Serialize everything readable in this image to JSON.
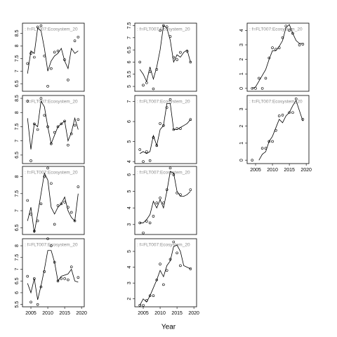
{
  "xlabel": "Year",
  "chart_data": [
    {
      "type": "scatter",
      "title": ": f=FLT007:Ecosystem_20",
      "x": [
        2004,
        2005,
        2006,
        2007,
        2008,
        2009,
        2010,
        2011,
        2012,
        2013,
        2014,
        2015,
        2016,
        2017,
        2018,
        2019
      ],
      "xlim": [
        2002.5,
        2020.8
      ],
      "ylim": [
        6.2,
        8.9
      ],
      "yticks": [
        6.5,
        7,
        7.5,
        8,
        8.5
      ],
      "series": [
        {
          "style": "points",
          "color": "#000000",
          "values": [
            7.3,
            7.7,
            7.55,
            8.75,
            8.8,
            7.6,
            6.4,
            7.1,
            7.75,
            7.8,
            null,
            7.45,
            6.65,
            null,
            8.2,
            8.35
          ]
        },
        {
          "style": "line",
          "color": "#000000",
          "values": [
            6.9,
            7.8,
            7.7,
            8.7,
            8.6,
            7.9,
            7.0,
            7.4,
            7.6,
            7.7,
            7.9,
            7.4,
            7.1,
            7.9,
            7.7,
            7.8
          ]
        }
      ]
    },
    {
      "type": "scatter",
      "title": ": f=FLT007:Ecosystem_20",
      "x": [
        2004,
        2005,
        2006,
        2007,
        2008,
        2009,
        2010,
        2011,
        2012,
        2013,
        2014,
        2015,
        2016,
        2017,
        2018,
        2019
      ],
      "xlim": [
        2002.5,
        2020.8
      ],
      "ylim": [
        6.2,
        8.6
      ],
      "yticks": [
        6.5,
        7,
        7.5,
        8,
        8.5
      ],
      "series": [
        {
          "style": "points",
          "color": "#000000",
          "values": [
            8.4,
            6.3,
            7.6,
            7.4,
            8.5,
            7.9,
            7.5,
            6.9,
            7.3,
            7.5,
            7.6,
            7.7,
            6.85,
            7.25,
            7.55,
            7.75
          ]
        },
        {
          "style": "line",
          "color": "#000000",
          "values": [
            7.8,
            6.7,
            7.6,
            7.5,
            8.4,
            8.2,
            7.5,
            6.9,
            7.2,
            7.5,
            7.6,
            7.7,
            7.0,
            7.3,
            7.8,
            7.4
          ]
        }
      ]
    },
    {
      "type": "scatter",
      "title": ": f=FLT007:Ecosystem_20",
      "x": [
        2004,
        2005,
        2006,
        2007,
        2008,
        2009,
        2010,
        2011,
        2012,
        2013,
        2014,
        2015,
        2016,
        2017,
        2018,
        2019
      ],
      "xlim": [
        2002.5,
        2020.8
      ],
      "ylim": [
        6.3,
        8.3
      ],
      "yticks": [
        6.5,
        7,
        7.5,
        8
      ],
      "series": [
        {
          "style": "points",
          "color": "#000000",
          "values": [
            7.3,
            6.9,
            6.4,
            6.7,
            7.2,
            8.0,
            8.25,
            7.8,
            6.6,
            7.15,
            7.2,
            7.25,
            7.1,
            6.95,
            6.7,
            7.7
          ]
        },
        {
          "style": "line",
          "color": "#000000",
          "values": [
            6.7,
            7.1,
            6.35,
            6.9,
            7.5,
            8.1,
            7.9,
            7.1,
            6.9,
            7.1,
            7.2,
            7.4,
            7.0,
            6.8,
            6.7,
            7.5
          ]
        }
      ]
    },
    {
      "type": "scatter",
      "title": ": f=FLT007:Ecosystem_20",
      "x": [
        2004,
        2005,
        2006,
        2007,
        2008,
        2009,
        2010,
        2011,
        2012,
        2013,
        2014,
        2015,
        2016,
        2017,
        2018,
        2019
      ],
      "xlim": [
        2002.5,
        2020.8
      ],
      "xticks": [
        2005,
        2010,
        2015,
        2020
      ],
      "ylim": [
        5.4,
        8.3
      ],
      "yticks": [
        5.5,
        6,
        6.5,
        7,
        7.5,
        8
      ],
      "series": [
        {
          "style": "points",
          "color": "#000000",
          "values": [
            6.7,
            5.6,
            6.6,
            5.5,
            6.25,
            6.9,
            8.3,
            8.0,
            7.3,
            6.5,
            6.6,
            6.6,
            6.55,
            7.1,
            null,
            6.65
          ]
        },
        {
          "style": "line",
          "color": "#000000",
          "values": [
            6.4,
            6.0,
            6.6,
            5.7,
            6.3,
            7.0,
            7.8,
            7.8,
            7.3,
            6.5,
            6.7,
            6.75,
            6.8,
            7.0,
            6.5,
            6.45
          ]
        }
      ]
    },
    {
      "type": "scatter",
      "title": ": f=FLT007:Ecosystem_20",
      "x": [
        2004,
        2005,
        2006,
        2007,
        2008,
        2009,
        2010,
        2011,
        2012,
        2013,
        2014,
        2015,
        2016,
        2017,
        2018,
        2019
      ],
      "xlim": [
        2002.5,
        2020.8
      ],
      "ylim": [
        4.8,
        7.6
      ],
      "yticks": [
        5,
        5.5,
        6,
        6.5,
        7,
        7.5
      ],
      "series": [
        {
          "style": "points",
          "color": "#000000",
          "values": [
            6.0,
            5.05,
            5.15,
            5.6,
            4.9,
            5.7,
            7.3,
            7.5,
            7.45,
            7.05,
            6.2,
            6.1,
            6.4,
            null,
            6.45,
            6.0
          ]
        },
        {
          "style": "line",
          "color": "#000000",
          "values": [
            5.7,
            5.5,
            5.2,
            5.8,
            5.3,
            5.8,
            6.5,
            7.5,
            7.4,
            6.9,
            6.0,
            6.3,
            6.2,
            6.4,
            6.5,
            6.0
          ]
        }
      ]
    },
    {
      "type": "scatter",
      "title": ": f=FLT007:Ecosystem_20",
      "x": [
        2004,
        2005,
        2006,
        2007,
        2008,
        2009,
        2010,
        2011,
        2012,
        2013,
        2014,
        2015,
        2016,
        2017,
        2018,
        2019
      ],
      "xlim": [
        2002.5,
        2020.8
      ],
      "ylim": [
        3.9,
        7.3
      ],
      "yticks": [
        4,
        5,
        6,
        7
      ],
      "series": [
        {
          "style": "points",
          "color": "#000000",
          "values": [
            4.6,
            4.0,
            4.5,
            4.05,
            5.2,
            4.8,
            5.9,
            5.8,
            6.7,
            7.1,
            5.6,
            5.65,
            5.65,
            null,
            null,
            6.1
          ]
        },
        {
          "style": "line",
          "color": "#000000",
          "values": [
            4.4,
            4.5,
            4.4,
            4.5,
            5.3,
            4.8,
            5.6,
            5.8,
            6.9,
            6.9,
            5.6,
            5.6,
            5.7,
            5.8,
            5.9,
            6.1
          ]
        }
      ]
    },
    {
      "type": "scatter",
      "title": ": f=FLT007:Ecosystem_20",
      "x": [
        2004,
        2005,
        2006,
        2007,
        2008,
        2009,
        2010,
        2011,
        2012,
        2013,
        2014,
        2015,
        2016,
        2017,
        2018,
        2019
      ],
      "xlim": [
        2002.5,
        2020.8
      ],
      "ylim": [
        2.4,
        6.5
      ],
      "yticks": [
        3,
        4,
        5,
        6
      ],
      "series": [
        {
          "style": "points",
          "color": "#000000",
          "values": [
            3.1,
            2.5,
            3.2,
            3.1,
            3.5,
            4.3,
            4.6,
            4.3,
            5.1,
            6.4,
            6.0,
            4.9,
            4.8,
            null,
            null,
            5.1
          ]
        },
        {
          "style": "line",
          "color": "#000000",
          "values": [
            3.1,
            3.1,
            3.3,
            3.6,
            4.4,
            4.0,
            4.5,
            4.0,
            5.0,
            6.2,
            6.1,
            5.0,
            4.7,
            4.7,
            4.8,
            5.0
          ]
        }
      ]
    },
    {
      "type": "scatter",
      "title": ": f=FLT007:Ecosystem_20",
      "x": [
        2004,
        2005,
        2006,
        2007,
        2008,
        2009,
        2010,
        2011,
        2012,
        2013,
        2014,
        2015,
        2016,
        2017,
        2018,
        2019
      ],
      "xlim": [
        2002.5,
        2020.8
      ],
      "xticks": [
        2005,
        2010,
        2015,
        2020
      ],
      "ylim": [
        1.5,
        5.8
      ],
      "yticks": [
        2,
        3,
        4,
        5
      ],
      "series": [
        {
          "style": "points",
          "color": "#000000",
          "values": [
            1.6,
            1.6,
            1.9,
            2.2,
            2.2,
            3.2,
            4.2,
            2.9,
            3.8,
            4.5,
            5.6,
            4.9,
            4.1,
            null,
            null,
            3.9
          ]
        },
        {
          "style": "line",
          "color": "#000000",
          "values": [
            1.6,
            2.0,
            1.8,
            2.2,
            2.7,
            3.2,
            3.8,
            3.4,
            4.1,
            4.4,
            5.3,
            5.4,
            5.0,
            4.1,
            4.0,
            3.9
          ]
        }
      ]
    },
    {
      "type": "scatter",
      "title": ": f=FLT007:Ecosystem_20",
      "x": [
        2004,
        2005,
        2006,
        2007,
        2008,
        2009,
        2010,
        2011,
        2012,
        2013,
        2014,
        2015,
        2016,
        2017,
        2018,
        2019
      ],
      "xlim": [
        2002.5,
        2020.8
      ],
      "ylim": [
        -0.2,
        4.5
      ],
      "yticks": [
        0,
        1,
        2,
        3,
        4
      ],
      "series": [
        {
          "style": "points",
          "color": "#000000",
          "values": [
            0,
            0,
            0.7,
            0,
            0.7,
            2.1,
            2.8,
            2.7,
            2.8,
            3.5,
            4.3,
            4.0,
            3.8,
            null,
            3.0,
            3.05
          ]
        },
        {
          "style": "line",
          "color": "#000000",
          "values": [
            0,
            0.1,
            0.5,
            0.9,
            1.3,
            2.0,
            2.6,
            2.6,
            2.9,
            3.3,
            4.2,
            4.4,
            3.8,
            3.3,
            3.1,
            3.1
          ]
        }
      ]
    },
    {
      "type": "scatter",
      "title": ": f=FLT007:Ecosystem_20",
      "x": [
        2004,
        2005,
        2006,
        2007,
        2008,
        2009,
        2010,
        2011,
        2012,
        2013,
        2014,
        2015,
        2016,
        2017,
        2018,
        2019
      ],
      "xlim": [
        2002.5,
        2020.8
      ],
      "xticks": [
        2005,
        2010,
        2015,
        2020
      ],
      "ylim": [
        -0.2,
        3.8
      ],
      "yticks": [
        0,
        1,
        2,
        3
      ],
      "series": [
        {
          "style": "points",
          "color": "#000000",
          "values": [
            0,
            null,
            null,
            0.7,
            0.7,
            1.1,
            1.1,
            1.75,
            2.6,
            2.65,
            null,
            2.8,
            2.8,
            3.6,
            null,
            2.4
          ]
        },
        {
          "style": "line",
          "color": "#000000",
          "values": [
            null,
            null,
            0,
            0.35,
            0.5,
            1.1,
            1.4,
            1.9,
            2.4,
            2.2,
            2.6,
            2.8,
            3.2,
            3.5,
            2.9,
            2.3
          ]
        }
      ]
    }
  ]
}
